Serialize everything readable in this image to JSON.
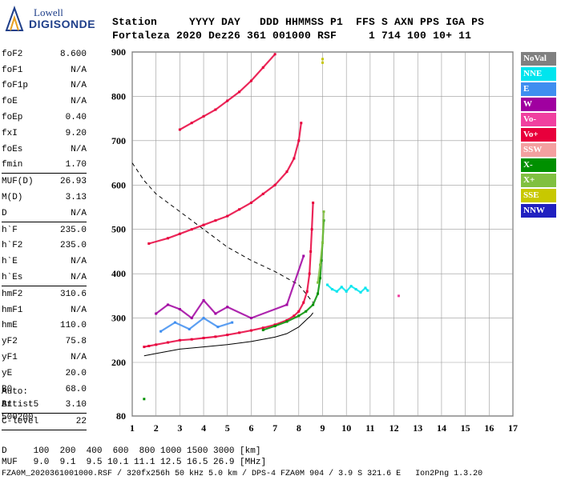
{
  "logo": {
    "line1": "Lowell",
    "line2": "DIGISONDE"
  },
  "header": {
    "row1": "Station     YYYY DAY   DDD HHMMSS P1  FFS S AXN PPS IGA PS",
    "row2": "Fortaleza 2020 Dez26 361 001000 RSF     1 714 100 10+ 11"
  },
  "params": [
    {
      "label": "foF2",
      "value": "8.600",
      "sep": false
    },
    {
      "label": "foF1",
      "value": "N/A",
      "sep": false
    },
    {
      "label": "foF1p",
      "value": "N/A",
      "sep": false
    },
    {
      "label": "foE",
      "value": "N/A",
      "sep": false
    },
    {
      "label": "foEp",
      "value": "0.40",
      "sep": false
    },
    {
      "label": "fxI",
      "value": "9.20",
      "sep": false
    },
    {
      "label": "foEs",
      "value": "N/A",
      "sep": false
    },
    {
      "label": "fmin",
      "value": "1.70",
      "sep": true
    },
    {
      "label": "MUF(D)",
      "value": "26.93",
      "sep": false
    },
    {
      "label": "M(D)",
      "value": "3.13",
      "sep": false
    },
    {
      "label": "D",
      "value": "N/A",
      "sep": true
    },
    {
      "label": "h`F",
      "value": "235.0",
      "sep": false
    },
    {
      "label": "h`F2",
      "value": "235.0",
      "sep": false
    },
    {
      "label": "h`E",
      "value": "N/A",
      "sep": false
    },
    {
      "label": "h`Es",
      "value": "N/A",
      "sep": true
    },
    {
      "label": "hmF2",
      "value": "310.6",
      "sep": false
    },
    {
      "label": "hmF1",
      "value": "N/A",
      "sep": false
    },
    {
      "label": "hmE",
      "value": "110.0",
      "sep": false
    },
    {
      "label": "yF2",
      "value": "75.8",
      "sep": false
    },
    {
      "label": "yF1",
      "value": "N/A",
      "sep": false
    },
    {
      "label": "yE",
      "value": "20.0",
      "sep": false
    },
    {
      "label": "B0",
      "value": "68.0",
      "sep": false
    },
    {
      "label": "B1",
      "value": "3.10",
      "sep": true
    },
    {
      "label": "C-level",
      "value": "22",
      "sep": true
    }
  ],
  "notes": {
    "auto": "Auto:",
    "artist": "Artist5",
    "code": "500200"
  },
  "footer": {
    "line1": "D     100  200  400  600  800 1000 1500 3000 [km]",
    "line2": "MUF   9.0  9.1  9.5 10.1 11.1 12.5 16.5 26.9 [MHz]",
    "line3": "FZA0M_2020361001000.RSF / 320fx256h 50 kHz 5.0 km / DPS-4 FZA0M 904 / 3.9 S 321.6 E   Ion2Png 1.3.20"
  },
  "legend": [
    {
      "label": "NoVal",
      "color": "#808080"
    },
    {
      "label": "NNE",
      "color": "#00e5ee"
    },
    {
      "label": "E",
      "color": "#3f8ef0"
    },
    {
      "label": "W",
      "color": "#a000a0"
    },
    {
      "label": "Vo-",
      "color": "#f040a0"
    },
    {
      "label": "Vo+",
      "color": "#e8003c"
    },
    {
      "label": "SSW",
      "color": "#f4a0a0"
    },
    {
      "label": "X-",
      "color": "#009000"
    },
    {
      "label": "X+",
      "color": "#80c040"
    },
    {
      "label": "SSE",
      "color": "#c8c800"
    },
    {
      "label": "NNW",
      "color": "#2020c0"
    }
  ],
  "chart_data": {
    "type": "scatter",
    "xlim": [
      1,
      17
    ],
    "ylim": [
      80,
      900
    ],
    "xticks": [
      1,
      2,
      3,
      4,
      5,
      6,
      7,
      8,
      9,
      10,
      11,
      12,
      13,
      14,
      15,
      16,
      17
    ],
    "yticks": [
      80,
      200,
      300,
      400,
      500,
      600,
      700,
      800,
      900
    ],
    "grid": true,
    "series": [
      {
        "name": "Vo+",
        "color": "#e8003c",
        "points": [
          [
            1.5,
            235
          ],
          [
            1.7,
            237
          ],
          [
            2,
            240
          ],
          [
            2.5,
            245
          ],
          [
            3,
            250
          ],
          [
            3.5,
            252
          ],
          [
            4,
            255
          ],
          [
            4.5,
            258
          ],
          [
            5,
            262
          ],
          [
            5.5,
            267
          ],
          [
            6,
            272
          ],
          [
            6.5,
            278
          ],
          [
            7,
            285
          ],
          [
            7.5,
            295
          ],
          [
            7.8,
            305
          ],
          [
            8,
            315
          ],
          [
            8.2,
            335
          ],
          [
            8.35,
            360
          ],
          [
            8.45,
            400
          ],
          [
            8.5,
            450
          ],
          [
            8.55,
            500
          ],
          [
            8.6,
            560
          ]
        ]
      },
      {
        "name": "X-",
        "color": "#009000",
        "points": [
          [
            6.5,
            273
          ],
          [
            7,
            282
          ],
          [
            7.5,
            292
          ],
          [
            8,
            305
          ],
          [
            8.3,
            315
          ],
          [
            8.6,
            330
          ],
          [
            8.8,
            355
          ],
          [
            8.9,
            390
          ],
          [
            8.95,
            430
          ],
          [
            9,
            470
          ],
          [
            9.05,
            520
          ]
        ]
      },
      {
        "name": "X+",
        "color": "#80c040",
        "points": [
          [
            8.8,
            380
          ],
          [
            8.9,
            420
          ],
          [
            9,
            470
          ],
          [
            9.05,
            540
          ]
        ]
      },
      {
        "name": "NNE",
        "color": "#00e5ee",
        "points": [
          [
            9.2,
            375
          ],
          [
            9.4,
            365
          ],
          [
            9.6,
            360
          ],
          [
            9.8,
            370
          ],
          [
            10,
            360
          ],
          [
            10.2,
            372
          ],
          [
            10.4,
            365
          ],
          [
            10.6,
            358
          ],
          [
            10.8,
            368
          ],
          [
            10.9,
            362
          ]
        ]
      },
      {
        "name": "W",
        "color": "#a000a0",
        "points": [
          [
            2,
            310
          ],
          [
            2.5,
            330
          ],
          [
            3,
            320
          ],
          [
            3.5,
            300
          ],
          [
            4,
            340
          ],
          [
            4.5,
            310
          ],
          [
            5,
            325
          ],
          [
            6,
            300
          ],
          [
            7.5,
            330
          ],
          [
            8.2,
            440
          ]
        ]
      },
      {
        "name": "E",
        "color": "#3f8ef0",
        "points": [
          [
            2.2,
            270
          ],
          [
            2.8,
            290
          ],
          [
            3.4,
            275
          ],
          [
            4,
            300
          ],
          [
            4.6,
            280
          ],
          [
            5.2,
            290
          ]
        ]
      },
      {
        "name": "Vo+ (2nd hop)",
        "color": "#e8003c",
        "points": [
          [
            1.7,
            468
          ],
          [
            2.5,
            480
          ],
          [
            3,
            490
          ],
          [
            3.5,
            500
          ],
          [
            4,
            510
          ],
          [
            4.5,
            520
          ],
          [
            5,
            530
          ],
          [
            5.5,
            545
          ],
          [
            6,
            560
          ],
          [
            6.5,
            580
          ],
          [
            7,
            600
          ],
          [
            7.5,
            630
          ],
          [
            7.8,
            660
          ],
          [
            8,
            700
          ],
          [
            8.1,
            740
          ]
        ]
      },
      {
        "name": "Vo+ (3rd hop)",
        "color": "#e8003c",
        "points": [
          [
            3,
            725
          ],
          [
            3.5,
            740
          ],
          [
            4,
            755
          ],
          [
            4.5,
            770
          ],
          [
            5,
            790
          ],
          [
            5.5,
            810
          ],
          [
            6,
            835
          ],
          [
            6.5,
            865
          ],
          [
            7,
            895
          ]
        ]
      },
      {
        "name": "SSE",
        "color": "#c8c800",
        "points": [
          [
            9,
            876
          ],
          [
            9,
            884
          ]
        ]
      },
      {
        "name": "X- (sparse)",
        "color": "#009000",
        "points": [
          [
            1.5,
            118
          ]
        ]
      },
      {
        "name": "Vo- (sparse)",
        "color": "#f040a0",
        "points": [
          [
            12.2,
            350
          ]
        ]
      }
    ],
    "profile_dashed": [
      [
        1,
        650
      ],
      [
        1.5,
        610
      ],
      [
        2,
        580
      ],
      [
        3,
        540
      ],
      [
        4,
        500
      ],
      [
        5,
        460
      ],
      [
        6,
        430
      ],
      [
        7,
        405
      ],
      [
        8,
        375
      ],
      [
        8.6,
        335
      ]
    ],
    "profile_solid": [
      [
        1.5,
        215
      ],
      [
        2,
        220
      ],
      [
        3,
        230
      ],
      [
        4,
        235
      ],
      [
        5,
        240
      ],
      [
        6,
        247
      ],
      [
        7,
        257
      ],
      [
        7.5,
        265
      ],
      [
        8,
        280
      ],
      [
        8.3,
        295
      ],
      [
        8.5,
        305
      ],
      [
        8.6,
        312
      ]
    ]
  }
}
